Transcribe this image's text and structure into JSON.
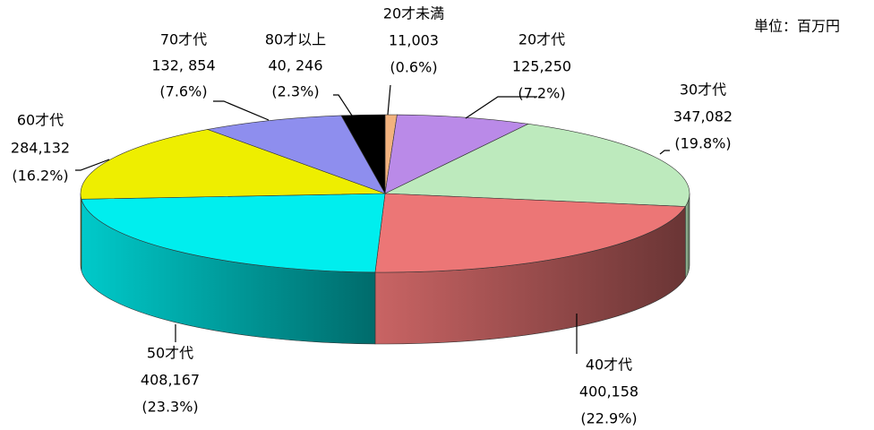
{
  "chart_data": {
    "type": "pie3d",
    "unit": "単位：百万円",
    "categories": [
      "20才未満",
      "20才代",
      "30才代",
      "40才代",
      "50才代",
      "60才代",
      "70才代",
      "80才以上"
    ],
    "values": [
      11003,
      125250,
      347082,
      400158,
      408167,
      284132,
      132854,
      40246
    ],
    "value_labels": [
      "11,003",
      "125,250",
      "347,082",
      "400,158",
      "408,167",
      "284,132",
      "132, 854",
      "40, 246"
    ],
    "percent_labels": [
      "(0.6%)",
      "(7.2%)",
      "(19.8%)",
      "(22.9%)",
      "(23.3%)",
      "(16.2%)",
      "(7.6%)",
      "(2.3%)"
    ],
    "colors": [
      "#f2b27e",
      "#ba8ae8",
      "#bdeabd",
      "#ec7676",
      "#00eeee",
      "#eeee00",
      "#8e8eee",
      "#000000"
    ]
  }
}
